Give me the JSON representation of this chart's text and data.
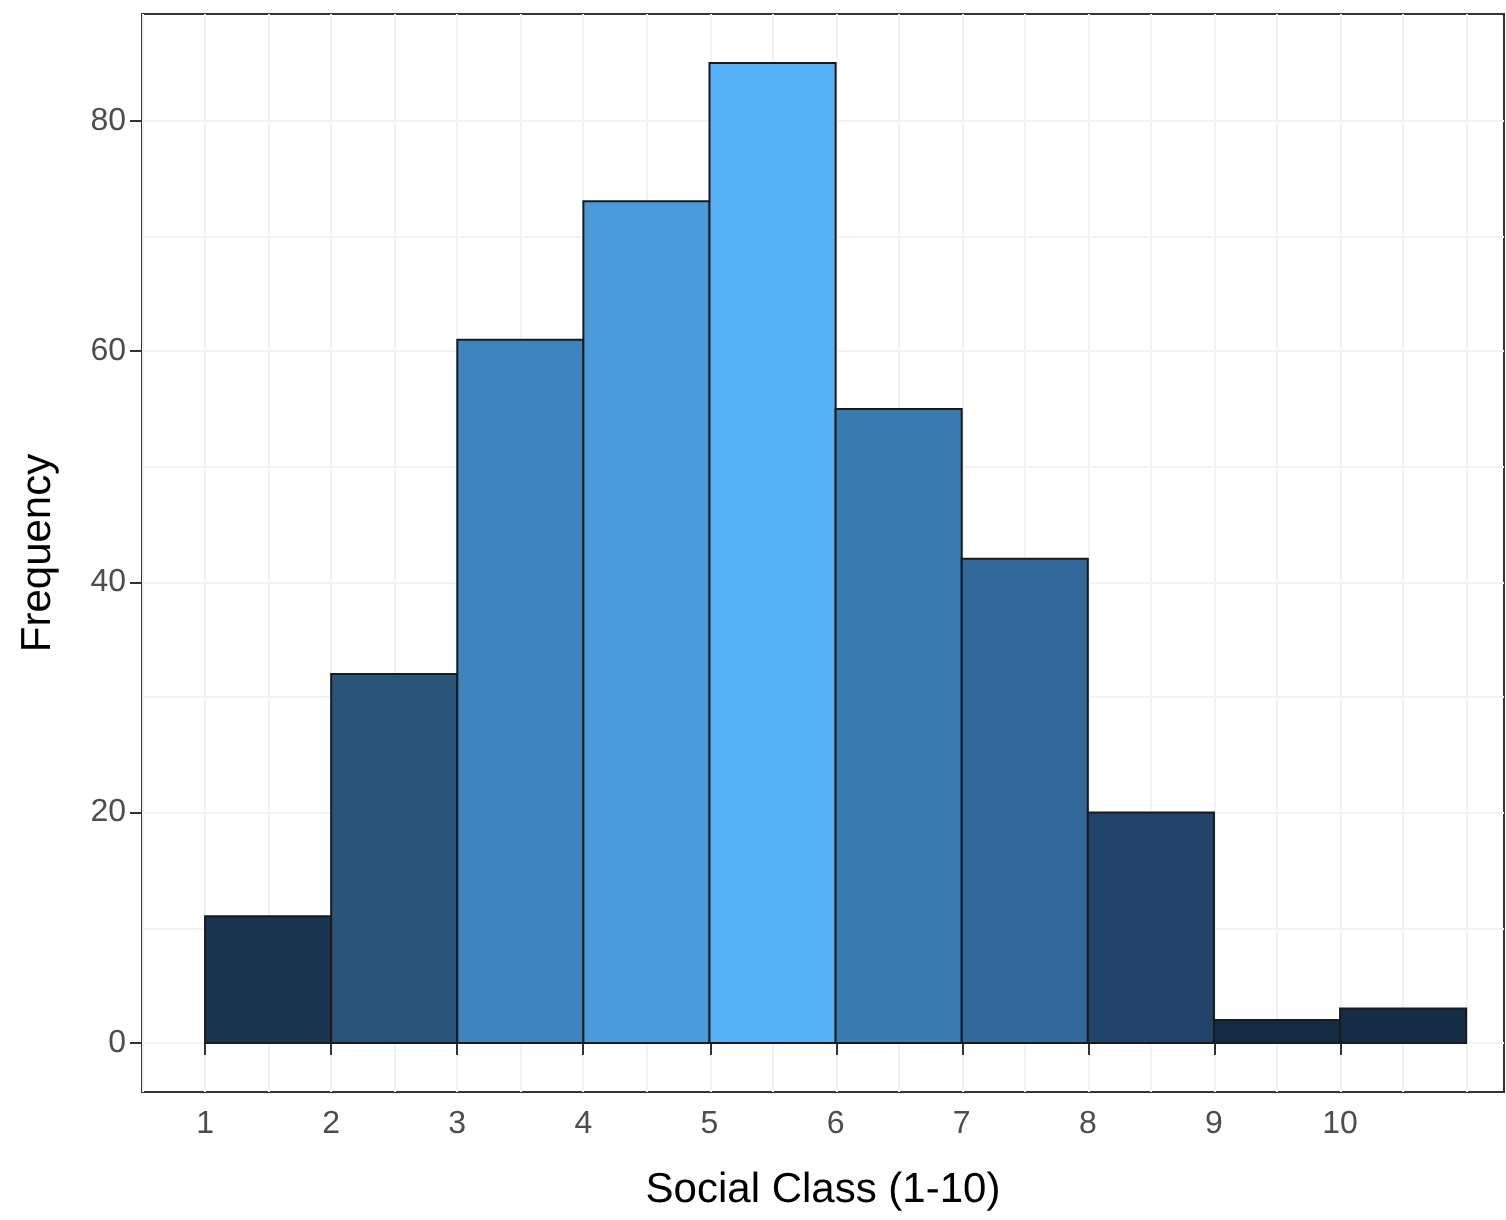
{
  "chart_data": {
    "type": "histogram",
    "xlabel": "Social Class (1-10)",
    "ylabel": "Frequency",
    "bins": [
      1,
      2,
      3,
      4,
      5,
      6,
      7,
      8,
      9,
      10,
      11
    ],
    "values": [
      11,
      32,
      61,
      73,
      85,
      55,
      42,
      20,
      2,
      3
    ],
    "colors": [
      "#1b3550",
      "#2a5578",
      "#3f84bf",
      "#4b9ad9",
      "#56b1f7",
      "#3a7bb2",
      "#32689a",
      "#22446a",
      "#132b43",
      "#142c45"
    ],
    "xlim": [
      0.5,
      11.3
    ],
    "xticks": [
      1,
      2,
      3,
      4,
      5,
      6,
      7,
      8,
      9,
      10
    ],
    "ylim": [
      -4.25,
      89.25
    ],
    "yticks": [
      0,
      20,
      40,
      60,
      80
    ],
    "grid": true
  }
}
